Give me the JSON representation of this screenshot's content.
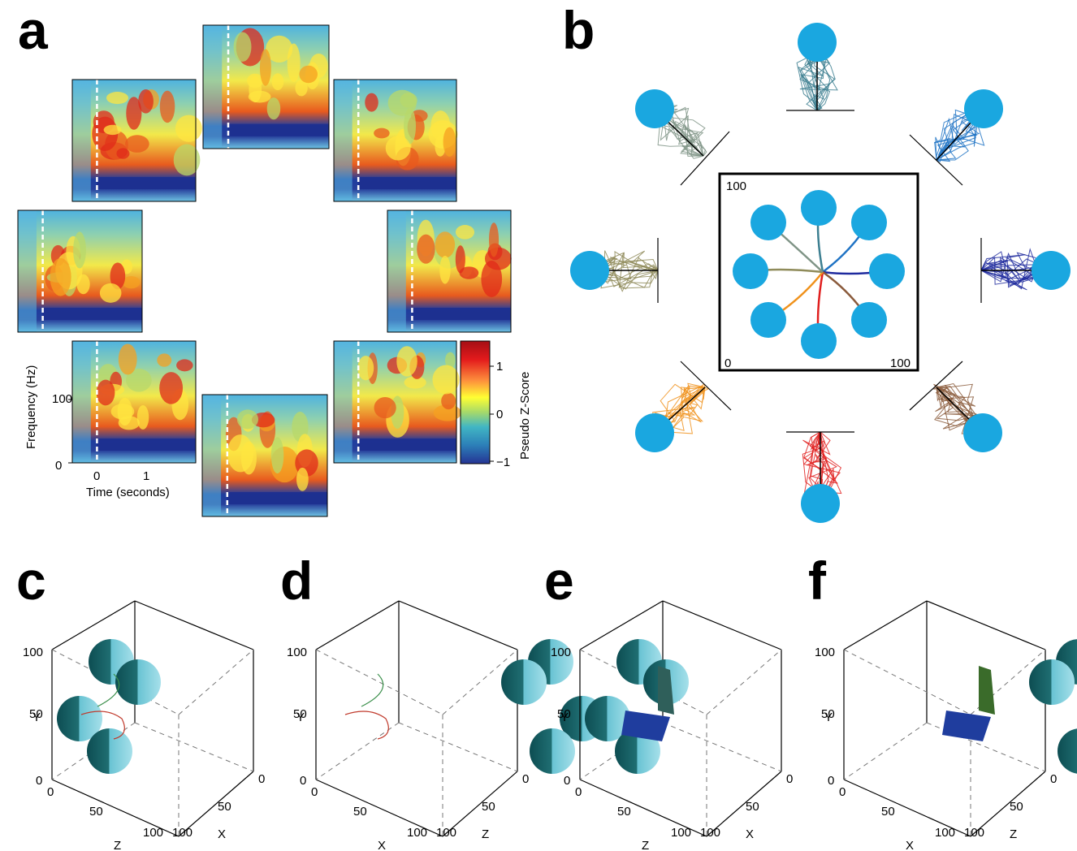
{
  "panels": {
    "a": {
      "letter": "a",
      "ylabel": "Frequency (Hz)",
      "xlabel": "Time (seconds)",
      "yticks": [
        "100",
        "0"
      ],
      "xticks": [
        "0",
        "1"
      ],
      "colorbar_label": "Pseudo Z-Score",
      "colorbar_ticks": [
        "1",
        "0",
        "−1"
      ],
      "colorbar_colors": [
        "#a50f15",
        "#e31a1c",
        "#fd8d3c",
        "#ffff33",
        "#a6d96a",
        "#41b6c4",
        "#2c7fb8",
        "#253494"
      ]
    },
    "b": {
      "letter": "b",
      "corner_labels": [
        "100",
        "0",
        "100"
      ],
      "target_color": "#1aa7e0",
      "trajectory_colors": [
        "#3d7f91",
        "#1f73c4",
        "#1e2a9e",
        "#8a5a3b",
        "#e0201f",
        "#f0921c",
        "#8f8b5a",
        "#7f9486"
      ]
    },
    "c": {
      "letter": "c",
      "y_label": "Y",
      "z_label": "Z",
      "x_label": "X",
      "ticks": [
        "100",
        "50",
        "0",
        "0",
        "50",
        "100",
        "0",
        "50",
        "100"
      ]
    },
    "d": {
      "letter": "d",
      "y_label": "Y",
      "x_label": "X",
      "z_label": "Z",
      "ticks": [
        "100",
        "50",
        "0",
        "0",
        "50",
        "100",
        "0",
        "50",
        "100"
      ]
    },
    "e": {
      "letter": "e",
      "y_label": "Y",
      "z_label": "Z",
      "x_label": "X",
      "ticks": [
        "100",
        "50",
        "0",
        "0",
        "50",
        "100",
        "0",
        "50",
        "100"
      ]
    },
    "f": {
      "letter": "f",
      "y_label": "Y",
      "x_label": "X",
      "z_label": "Z",
      "ticks": [
        "100",
        "50",
        "0",
        "0",
        "50",
        "100",
        "0",
        "50",
        "100"
      ]
    }
  }
}
